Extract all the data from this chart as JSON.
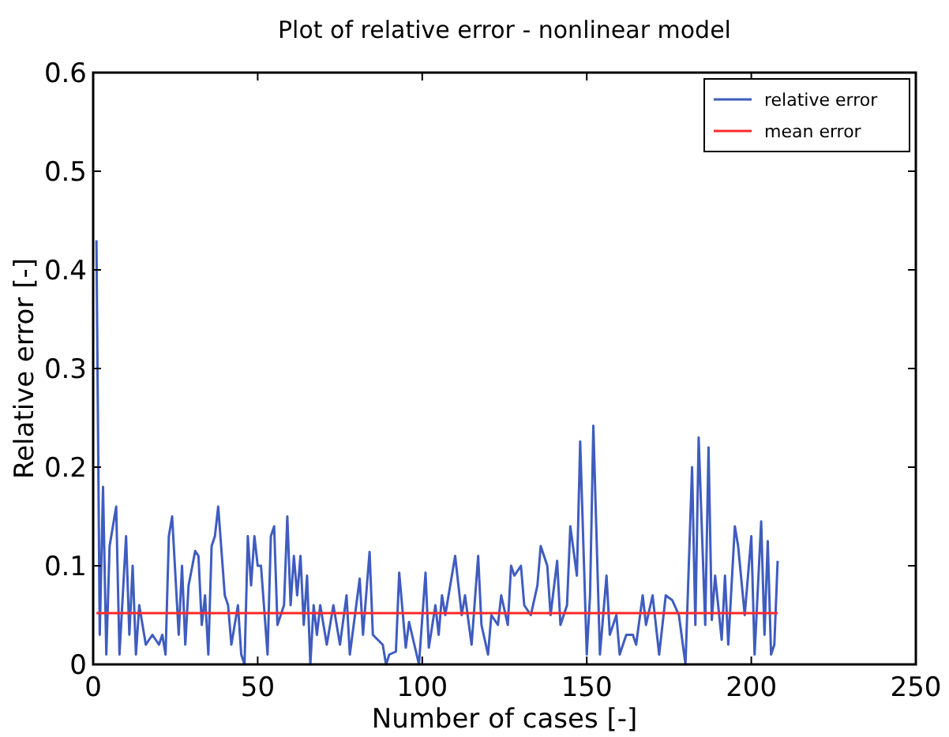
{
  "chart_data": {
    "type": "line",
    "title": "Plot of relative error - nonlinear model",
    "xlabel": "Number of cases [-]",
    "ylabel": "Relative error [-]",
    "xlim": [
      0,
      250
    ],
    "xticks": [
      0,
      50,
      100,
      150,
      200,
      250
    ],
    "ylim": [
      0,
      0.6
    ],
    "yticks": [
      0,
      0.1,
      0.2,
      0.3,
      0.4,
      0.5,
      0.6
    ],
    "grid": false,
    "legend": "top right",
    "line_style": "solid",
    "series": [
      {
        "name": "relative error",
        "color": "#3f5cbf",
        "x": [
          1,
          2,
          3,
          4,
          5,
          7,
          8,
          10,
          11,
          12,
          13,
          14,
          16,
          18,
          20,
          21,
          22,
          23,
          24,
          26,
          27,
          28,
          29,
          31,
          32,
          33,
          34,
          35,
          36,
          37,
          38,
          40,
          41,
          42,
          44,
          45,
          46,
          47,
          48,
          49,
          50,
          51,
          53,
          54,
          55,
          56,
          58,
          59,
          60,
          61,
          62,
          63,
          64,
          65,
          66,
          67,
          68,
          69,
          71,
          73,
          75,
          77,
          78,
          81,
          82,
          84,
          85,
          88,
          89,
          90,
          92,
          93,
          95,
          96,
          99,
          101,
          102,
          104,
          105,
          106,
          107,
          109,
          110,
          112,
          113,
          115,
          117,
          118,
          120,
          121,
          123,
          124,
          126,
          127,
          128,
          130,
          131,
          133,
          135,
          136,
          138,
          139,
          141,
          142,
          144,
          145,
          147,
          148,
          150,
          151,
          152,
          154,
          156,
          157,
          159,
          160,
          162,
          164,
          165,
          167,
          168,
          170,
          172,
          174,
          176,
          178,
          180,
          182,
          183,
          184,
          186,
          187,
          188,
          189,
          191,
          192,
          193,
          195,
          196,
          198,
          200,
          201,
          203,
          204,
          205,
          206,
          207,
          208
        ],
        "values": [
          0.43,
          0.03,
          0.18,
          0.01,
          0.12,
          0.16,
          0.01,
          0.13,
          0.03,
          0.1,
          0.01,
          0.06,
          0.02,
          0.03,
          0.02,
          0.03,
          0.01,
          0.13,
          0.15,
          0.03,
          0.1,
          0.02,
          0.08,
          0.115,
          0.11,
          0.04,
          0.07,
          0.01,
          0.12,
          0.13,
          0.16,
          0.07,
          0.06,
          0.02,
          0.06,
          0.01,
          0.0,
          0.13,
          0.08,
          0.13,
          0.1,
          0.1,
          0.01,
          0.13,
          0.14,
          0.04,
          0.06,
          0.15,
          0.06,
          0.11,
          0.07,
          0.11,
          0.04,
          0.09,
          0.0,
          0.06,
          0.03,
          0.06,
          0.02,
          0.06,
          0.02,
          0.07,
          0.01,
          0.087,
          0.03,
          0.114,
          0.03,
          0.02,
          0.0,
          0.01,
          0.013,
          0.093,
          0.017,
          0.043,
          0.0,
          0.093,
          0.017,
          0.06,
          0.03,
          0.07,
          0.05,
          0.09,
          0.11,
          0.05,
          0.07,
          0.02,
          0.11,
          0.04,
          0.01,
          0.05,
          0.04,
          0.07,
          0.04,
          0.1,
          0.09,
          0.1,
          0.06,
          0.05,
          0.08,
          0.12,
          0.1,
          0.05,
          0.105,
          0.04,
          0.06,
          0.14,
          0.09,
          0.226,
          0.01,
          0.07,
          0.242,
          0.01,
          0.09,
          0.03,
          0.05,
          0.01,
          0.03,
          0.03,
          0.02,
          0.07,
          0.04,
          0.07,
          0.01,
          0.07,
          0.065,
          0.05,
          0.0,
          0.2,
          0.04,
          0.23,
          0.04,
          0.22,
          0.045,
          0.09,
          0.025,
          0.09,
          0.02,
          0.14,
          0.12,
          0.05,
          0.13,
          0.01,
          0.145,
          0.03,
          0.125,
          0.01,
          0.02,
          0.105
        ]
      },
      {
        "name": "mean error",
        "color": "#ff2a2a",
        "x": [
          1,
          208
        ],
        "values": [
          0.052,
          0.052
        ]
      }
    ]
  }
}
